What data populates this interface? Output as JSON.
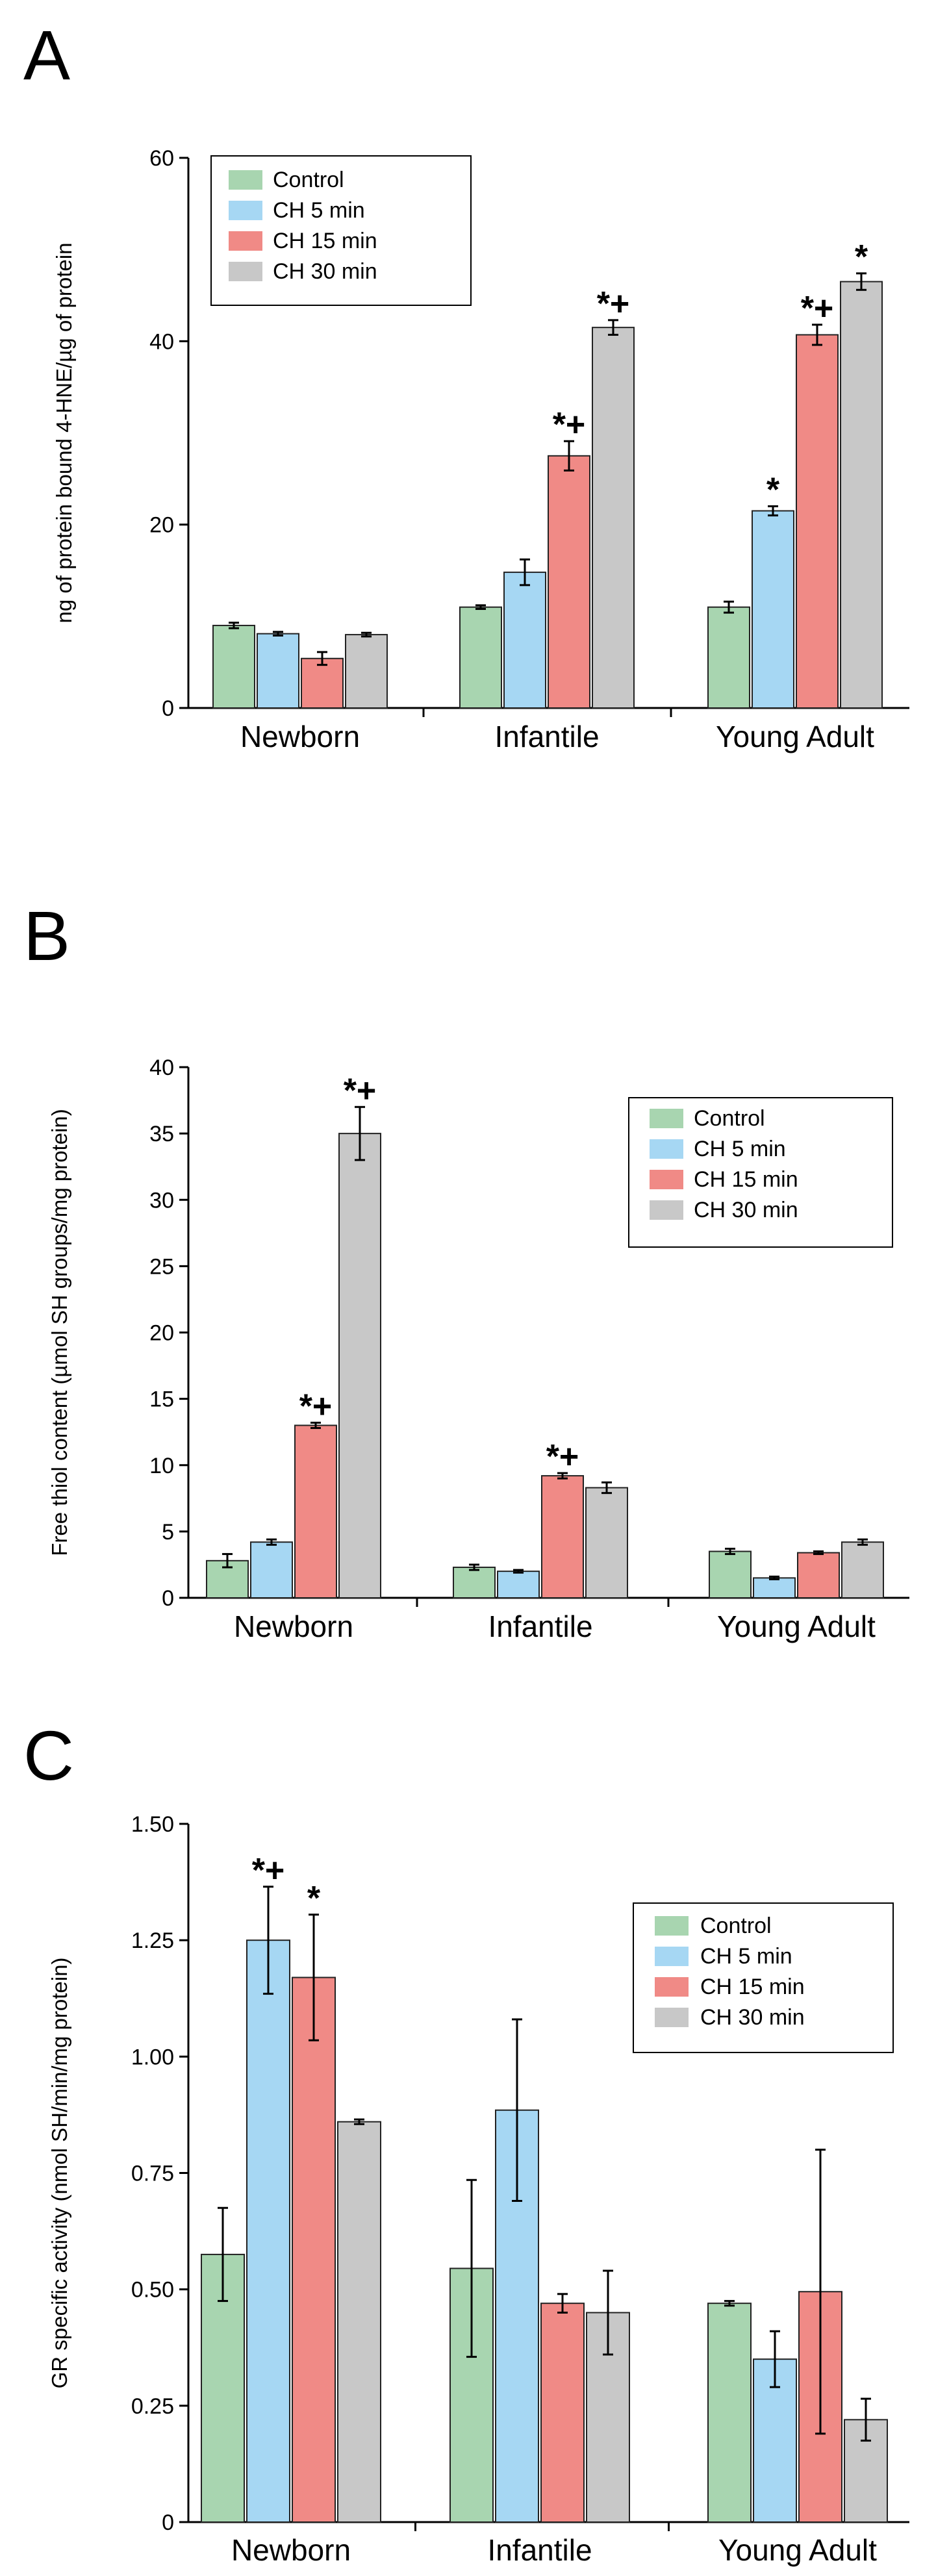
{
  "colors": {
    "control": "#a8d5b0",
    "ch5": "#a6d7f3",
    "ch15": "#f08a86",
    "ch30": "#c8c8c8",
    "axis": "#000000"
  },
  "panels": [
    {
      "letter": "A",
      "chart_data": {
        "type": "bar",
        "title": "",
        "ylabel": "ng of protein bound 4-HNE/µg of protein",
        "xlabel": "",
        "ylim": [
          0,
          60
        ],
        "yticks": [
          0,
          20,
          40,
          60
        ],
        "ytick_labels": [
          "0",
          "20",
          "40",
          "60"
        ],
        "categories": [
          "Newborn",
          "Infantile",
          "Young Adult"
        ],
        "legend_position": "top-left",
        "series": [
          {
            "name": "Control",
            "color_key": "control",
            "values": [
              9.0,
              11.0,
              11.0
            ],
            "errors": [
              0.3,
              0.2,
              0.6
            ],
            "sig": [
              "",
              "",
              ""
            ]
          },
          {
            "name": "CH 5 min",
            "color_key": "ch5",
            "values": [
              8.1,
              14.8,
              21.5
            ],
            "errors": [
              0.2,
              1.4,
              0.5
            ],
            "sig": [
              "",
              "",
              "*"
            ]
          },
          {
            "name": "CH 15 min",
            "color_key": "ch15",
            "values": [
              5.4,
              27.5,
              40.7
            ],
            "errors": [
              0.7,
              1.6,
              1.1
            ],
            "sig": [
              "",
              "*+",
              "*+"
            ]
          },
          {
            "name": "CH 30 min",
            "color_key": "ch30",
            "values": [
              8.0,
              41.5,
              46.5
            ],
            "errors": [
              0.2,
              0.8,
              0.9
            ],
            "sig": [
              "",
              "*+",
              "*"
            ]
          }
        ]
      }
    },
    {
      "letter": "B",
      "chart_data": {
        "type": "bar",
        "title": "",
        "ylabel": "Free thiol content (µmol SH groups/mg protein)",
        "xlabel": "",
        "ylim": [
          0,
          40
        ],
        "yticks": [
          0,
          5,
          10,
          15,
          20,
          25,
          30,
          35,
          40
        ],
        "ytick_labels": [
          "0",
          "5",
          "10",
          "15",
          "20",
          "25",
          "30",
          "35",
          "40"
        ],
        "categories": [
          "Newborn",
          "Infantile",
          "Young Adult"
        ],
        "legend_position": "top-right",
        "series": [
          {
            "name": "Control",
            "color_key": "control",
            "values": [
              2.8,
              2.3,
              3.5
            ],
            "errors": [
              0.5,
              0.2,
              0.2
            ],
            "sig": [
              "",
              "",
              ""
            ]
          },
          {
            "name": "CH 5 min",
            "color_key": "ch5",
            "values": [
              4.2,
              2.0,
              1.5
            ],
            "errors": [
              0.2,
              0.1,
              0.1
            ],
            "sig": [
              "",
              "",
              ""
            ]
          },
          {
            "name": "CH 15 min",
            "color_key": "ch15",
            "values": [
              13.0,
              9.2,
              3.4
            ],
            "errors": [
              0.2,
              0.2,
              0.1
            ],
            "sig": [
              "*+",
              "*+",
              ""
            ]
          },
          {
            "name": "CH 30 min",
            "color_key": "ch30",
            "values": [
              35.0,
              8.3,
              4.2
            ],
            "errors": [
              2.0,
              0.4,
              0.2
            ],
            "sig": [
              "*+",
              "",
              ""
            ]
          }
        ]
      }
    },
    {
      "letter": "C",
      "chart_data": {
        "type": "bar",
        "title": "",
        "ylabel": "GR specific activity (nmol SH/min/mg protein)",
        "xlabel": "",
        "ylim": [
          0,
          1.5
        ],
        "yticks": [
          0,
          0.25,
          0.5,
          0.75,
          1.0,
          1.25,
          1.5
        ],
        "ytick_labels": [
          "0",
          "0.25",
          "0.50",
          "0.75",
          "1.00",
          "1.25",
          "1.50"
        ],
        "categories": [
          "Newborn",
          "Infantile",
          "Young Adult"
        ],
        "legend_position": "top-right",
        "series": [
          {
            "name": "Control",
            "color_key": "control",
            "values": [
              0.575,
              0.545,
              0.47
            ],
            "errors": [
              0.1,
              0.19,
              0.005
            ],
            "sig": [
              "",
              "",
              ""
            ]
          },
          {
            "name": "CH 5 min",
            "color_key": "ch5",
            "values": [
              1.25,
              0.885,
              0.35
            ],
            "errors": [
              0.115,
              0.195,
              0.06
            ],
            "sig": [
              "*+",
              "",
              ""
            ]
          },
          {
            "name": "CH 15 min",
            "color_key": "ch15",
            "values": [
              1.17,
              0.47,
              0.495
            ],
            "errors": [
              0.135,
              0.02,
              0.305
            ],
            "sig": [
              "*",
              "",
              ""
            ]
          },
          {
            "name": "CH 30 min",
            "color_key": "ch30",
            "values": [
              0.86,
              0.45,
              0.22
            ],
            "errors": [
              0.005,
              0.09,
              0.045
            ],
            "sig": [
              "",
              "",
              ""
            ]
          }
        ]
      }
    }
  ]
}
